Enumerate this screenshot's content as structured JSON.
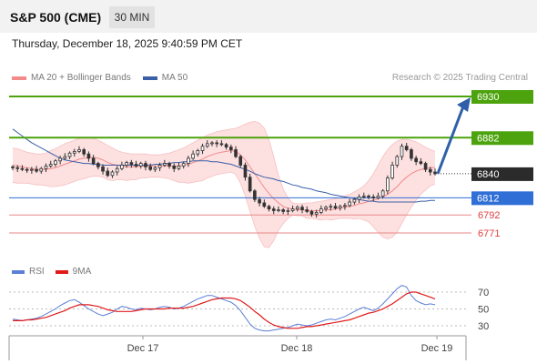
{
  "header": {
    "title": "S&P 500 (CME)",
    "interval": "30 MIN"
  },
  "timestamp": "Thursday, December 18, 2025 9:40:59 PM CET",
  "legend": {
    "ma_bb": {
      "label": "MA 20 + Bollinger Bands",
      "color": "#f28a8a"
    },
    "ma50": {
      "label": "MA 50",
      "color": "#3a5fa8"
    }
  },
  "credit": "Research © 2025 Trading Central",
  "rsi_legend": {
    "rsi": {
      "label": "RSI",
      "color": "#5b7fd6"
    },
    "ma9": {
      "label": "9MA",
      "color": "#e01b1b"
    }
  },
  "colors": {
    "up": "#ffffff",
    "down": "#333333",
    "resistance": "#4ca30d",
    "support": "#2f6fd6",
    "weak_support": "#e88a8a",
    "band_fill": "#fde0e0"
  },
  "chart_data": [
    {
      "type": "candlestick",
      "x_labels": [
        "Dec 17",
        "Dec 18",
        "Dec 19"
      ],
      "levels": [
        {
          "value": 6930,
          "label": "6930",
          "kind": "resistance"
        },
        {
          "value": 6882,
          "label": "6882",
          "kind": "resistance"
        },
        {
          "value": 6840,
          "label": "6840",
          "kind": "current"
        },
        {
          "value": 6812,
          "label": "6812",
          "kind": "support"
        },
        {
          "value": 6792,
          "label": "6792",
          "kind": "weak_support"
        },
        {
          "value": 6771,
          "label": "6771",
          "kind": "weak_support"
        }
      ],
      "close": [
        6847,
        6846,
        6845,
        6844,
        6845,
        6843,
        6846,
        6849,
        6851,
        6855,
        6858,
        6860,
        6864,
        6866,
        6868,
        6863,
        6858,
        6852,
        6848,
        6843,
        6838,
        6842,
        6846,
        6850,
        6853,
        6851,
        6849,
        6852,
        6848,
        6845,
        6847,
        6850,
        6852,
        6849,
        6846,
        6849,
        6852,
        6858,
        6863,
        6867,
        6872,
        6875,
        6876,
        6875,
        6874,
        6871,
        6868,
        6860,
        6850,
        6836,
        6820,
        6810,
        6806,
        6802,
        6799,
        6797,
        6798,
        6796,
        6797,
        6799,
        6801,
        6798,
        6796,
        6793,
        6795,
        6799,
        6801,
        6802,
        6800,
        6802,
        6803,
        6807,
        6810,
        6813,
        6814,
        6813,
        6812,
        6814,
        6820,
        6835,
        6850,
        6860,
        6872,
        6868,
        6858,
        6854,
        6852,
        6845,
        6842,
        6840
      ],
      "ma20": [
        6850,
        6849,
        6848,
        6847,
        6846,
        6845,
        6845,
        6845,
        6846,
        6847,
        6849,
        6851,
        6853,
        6855,
        6857,
        6858,
        6859,
        6859,
        6858,
        6856,
        6853,
        6851,
        6850,
        6849,
        6848,
        6848,
        6848,
        6849,
        6849,
        6849,
        6849,
        6849,
        6849,
        6849,
        6849,
        6849,
        6850,
        6851,
        6853,
        6855,
        6857,
        6860,
        6862,
        6864,
        6865,
        6866,
        6867,
        6866,
        6862,
        6856,
        6848,
        6840,
        6832,
        6824,
        6817,
        6811,
        6806,
        6802,
        6800,
        6799,
        6798,
        6798,
        6797,
        6797,
        6797,
        6797,
        6798,
        6798,
        6799,
        6800,
        6801,
        6802,
        6803,
        6805,
        6806,
        6808,
        6809,
        6811,
        6813,
        6816,
        6820,
        6825,
        6831,
        6836,
        6840,
        6843,
        6845,
        6846,
        6847,
        6847
      ],
      "bb_upper": [
        6870,
        6869,
        6867,
        6865,
        6864,
        6863,
        6863,
        6864,
        6867,
        6869,
        6872,
        6875,
        6877,
        6879,
        6881,
        6882,
        6882,
        6881,
        6879,
        6876,
        6873,
        6870,
        6867,
        6865,
        6864,
        6863,
        6863,
        6863,
        6863,
        6862,
        6862,
        6862,
        6863,
        6864,
        6866,
        6868,
        6870,
        6873,
        6876,
        6879,
        6882,
        6885,
        6887,
        6889,
        6890,
        6891,
        6892,
        6893,
        6895,
        6898,
        6900,
        6901,
        6899,
        6893,
        6880,
        6860,
        6838,
        6822,
        6812,
        6806,
        6805,
        6805,
        6806,
        6806,
        6807,
        6808,
        6809,
        6810,
        6811,
        6812,
        6814,
        6816,
        6819,
        6822,
        6826,
        6832,
        6840,
        6850,
        6860,
        6868,
        6874,
        6878,
        6880,
        6880,
        6879,
        6877,
        6874,
        6871,
        6868,
        6866
      ],
      "bb_lower": [
        6830,
        6829,
        6829,
        6829,
        6828,
        6827,
        6827,
        6826,
        6825,
        6825,
        6826,
        6827,
        6829,
        6831,
        6833,
        6834,
        6836,
        6837,
        6837,
        6836,
        6833,
        6832,
        6833,
        6833,
        6832,
        6833,
        6833,
        6835,
        6835,
        6836,
        6836,
        6836,
        6835,
        6834,
        6832,
        6830,
        6830,
        6829,
        6830,
        6831,
        6832,
        6835,
        6837,
        6839,
        6840,
        6841,
        6842,
        6839,
        6829,
        6814,
        6796,
        6779,
        6765,
        6755,
        6754,
        6762,
        6774,
        6782,
        6788,
        6792,
        6791,
        6791,
        6788,
        6788,
        6787,
        6786,
        6787,
        6786,
        6787,
        6788,
        6788,
        6788,
        6787,
        6788,
        6786,
        6784,
        6778,
        6772,
        6766,
        6764,
        6766,
        6772,
        6782,
        6792,
        6801,
        6809,
        6816,
        6821,
        6826,
        6828
      ],
      "ma50": [
        6892,
        6888,
        6884,
        6880,
        6876,
        6873,
        6870,
        6867,
        6864,
        6861,
        6858,
        6856,
        6855,
        6854,
        6853,
        6852,
        6852,
        6851,
        6851,
        6850,
        6850,
        6850,
        6850,
        6850,
        6850,
        6850,
        6850,
        6850,
        6850,
        6850,
        6851,
        6851,
        6852,
        6852,
        6853,
        6853,
        6854,
        6854,
        6855,
        6855,
        6855,
        6855,
        6854,
        6854,
        6853,
        6852,
        6851,
        6849,
        6847,
        6845,
        6843,
        6840,
        6838,
        6836,
        6835,
        6834,
        6832,
        6831,
        6829,
        6827,
        6826,
        6824,
        6823,
        6822,
        6820,
        6819,
        6818,
        6816,
        6815,
        6814,
        6813,
        6812,
        6811,
        6810,
        6809,
        6808,
        6808,
        6807,
        6807,
        6807,
        6807,
        6807,
        6807,
        6807,
        6807,
        6807,
        6808,
        6808,
        6809,
        6809
      ],
      "rsi": [
        38,
        37,
        36,
        37,
        38,
        39,
        41,
        44,
        47,
        50,
        54,
        57,
        60,
        61,
        58,
        54,
        50,
        47,
        44,
        42,
        44,
        46,
        50,
        53,
        52,
        50,
        49,
        51,
        50,
        49,
        50,
        52,
        53,
        52,
        50,
        51,
        53,
        56,
        59,
        62,
        64,
        66,
        66,
        64,
        62,
        60,
        58,
        54,
        48,
        40,
        32,
        27,
        25,
        24,
        24,
        25,
        26,
        27,
        28,
        30,
        32,
        31,
        30,
        31,
        33,
        35,
        37,
        38,
        37,
        39,
        41,
        44,
        47,
        50,
        52,
        50,
        48,
        51,
        56,
        62,
        68,
        74,
        78,
        76,
        66,
        60,
        57,
        55,
        56,
        55
      ],
      "rsi_ma9": [
        36,
        36,
        36,
        37,
        37,
        38,
        39,
        40,
        42,
        44,
        46,
        48,
        51,
        53,
        55,
        55,
        55,
        54,
        53,
        51,
        49,
        48,
        47,
        47,
        47,
        47,
        48,
        49,
        50,
        50,
        50,
        50,
        50,
        51,
        51,
        51,
        51,
        52,
        53,
        55,
        57,
        59,
        61,
        62,
        63,
        63,
        63,
        62,
        60,
        56,
        52,
        47,
        43,
        38,
        34,
        31,
        29,
        28,
        27,
        27,
        27,
        28,
        29,
        29,
        30,
        31,
        32,
        33,
        34,
        35,
        36,
        37,
        39,
        41,
        43,
        45,
        46,
        48,
        50,
        53,
        56,
        60,
        64,
        68,
        70,
        70,
        68,
        66,
        64,
        62
      ]
    }
  ]
}
